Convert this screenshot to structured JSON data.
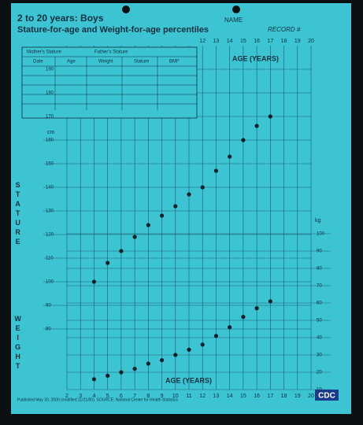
{
  "chart_data": {
    "type": "scatter",
    "title": "2 to 20 years: Boys",
    "subtitle": "Stature-for-age and Weight-for-age percentiles",
    "xlabel": "AGE (YEARS)",
    "y_unit": "cm",
    "y2_unit": "kg",
    "x": [
      4,
      5,
      6,
      7,
      8,
      9,
      10,
      11,
      12,
      13,
      14,
      15,
      16,
      17
    ],
    "series": [
      {
        "name": "STATURE",
        "color": "#10202a",
        "axis": "y",
        "values": [
          100,
          108,
          113,
          119,
          124,
          128,
          132,
          137,
          140,
          147,
          153,
          160,
          166,
          170
        ]
      },
      {
        "name": "WEIGHT",
        "color": "#10202a",
        "axis": "y2",
        "values": [
          16,
          18,
          20,
          22,
          25,
          27,
          30,
          33,
          36,
          41,
          46,
          52,
          57,
          61
        ]
      }
    ],
    "xlim": [
      2,
      20
    ],
    "xticks": [
      2,
      3,
      4,
      5,
      6,
      7,
      8,
      9,
      10,
      11,
      12,
      13,
      14,
      15,
      16,
      17,
      18,
      19,
      20
    ],
    "ylim": [
      75,
      200
    ],
    "yticks": [
      80,
      90,
      100,
      110,
      120,
      130,
      140,
      150,
      160,
      170,
      180,
      190
    ],
    "y2lim": [
      10,
      105
    ],
    "y2ticks": [
      10,
      20,
      30,
      40,
      50,
      60,
      70,
      80,
      90,
      100
    ],
    "grid": true
  },
  "form": {
    "name": "NAME",
    "record": "RECORD #",
    "columns": [
      "Date",
      "Age",
      "Weight",
      "Stature",
      "BMI*"
    ],
    "mother": "Mother's Stature",
    "father": "Father's Stature",
    "logo": "CDC",
    "footer": "Published May 30, 2000 (modified 11/21/00). SOURCE: National Center for Health Statistics"
  }
}
